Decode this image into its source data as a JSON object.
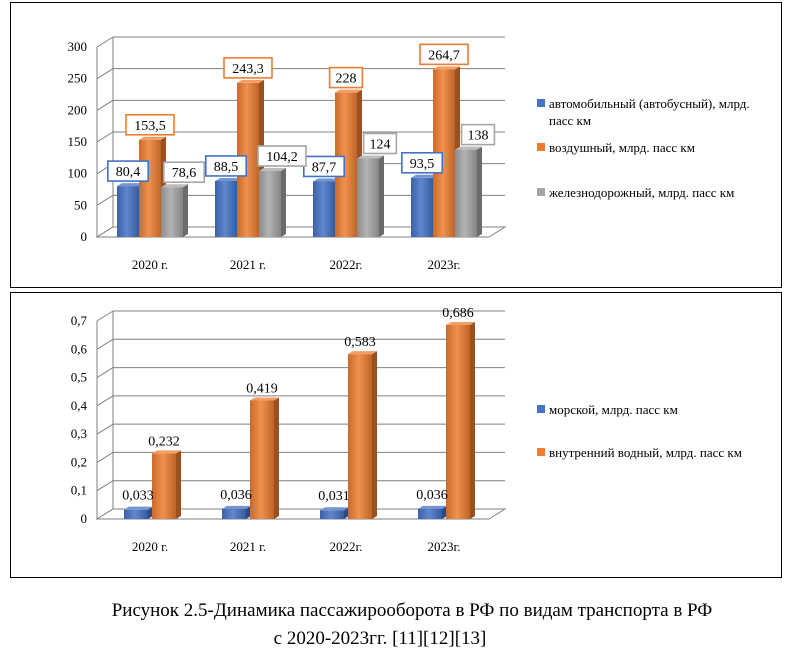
{
  "chart_data": [
    {
      "type": "bar",
      "categories": [
        "2020 г.",
        "2021 г.",
        "2022г.",
        "2023г."
      ],
      "ylim": [
        0,
        300
      ],
      "yticks": [
        "0",
        "50",
        "100",
        "150",
        "200",
        "250",
        "300"
      ],
      "series": [
        {
          "name": "автомобильный (автобусный), млрд. пасс км",
          "values": [
            80.4,
            88.5,
            87.7,
            93.5
          ],
          "labels": [
            "80,4",
            "88,5",
            "87,7",
            "93,5"
          ],
          "color": "#4472C4",
          "label_border": "#4472C4"
        },
        {
          "name": "воздушный, млрд. пасс км",
          "values": [
            153.5,
            243.3,
            228,
            264.7
          ],
          "labels": [
            "153,5",
            "243,3",
            "228",
            "264,7"
          ],
          "color": "#ED7D31",
          "label_border": "#ED7D31"
        },
        {
          "name": "железнодорожный,  млрд. пасс км",
          "values": [
            78.6,
            104.2,
            124,
            138
          ],
          "labels": [
            "78,6",
            "104,2",
            "124",
            "138"
          ],
          "color": "#A5A5A5",
          "label_border": "#A5A5A5"
        }
      ],
      "grid": true,
      "legend_position": "right"
    },
    {
      "type": "bar",
      "categories": [
        "2020 г.",
        "2021 г.",
        "2022г.",
        "2023г."
      ],
      "ylim": [
        0,
        0.7
      ],
      "yticks": [
        "0",
        "0,1",
        "0,2",
        "0,3",
        "0,4",
        "0,5",
        "0,6",
        "0,7"
      ],
      "series": [
        {
          "name": "морской, млрд. пасс км",
          "values": [
            0.033,
            0.036,
            0.031,
            0.036
          ],
          "labels": [
            "0,033",
            "0,036",
            "0,031",
            "0,036"
          ],
          "color": "#4472C4"
        },
        {
          "name": "внутренний водный, млрд. пасс км",
          "values": [
            0.232,
            0.419,
            0.583,
            0.686
          ],
          "labels": [
            "0,232",
            "0,419",
            "0,583",
            "0,686"
          ],
          "color": "#ED7D31"
        }
      ],
      "grid": true,
      "legend_position": "right"
    }
  ],
  "caption": {
    "line1": "Рисунок 2.5-Динамика пассажирооборота в РФ по видам транспорта в РФ",
    "line2": "с  2020-2023гг. [11][12][13]"
  }
}
